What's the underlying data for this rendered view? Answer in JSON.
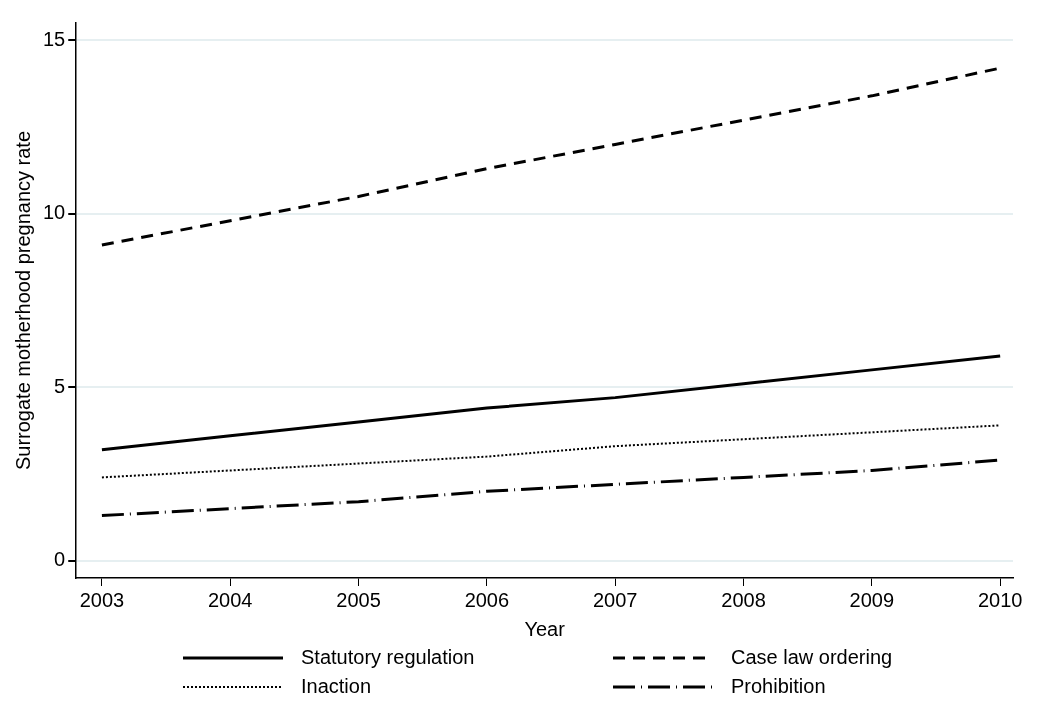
{
  "chart_data": {
    "type": "line",
    "xlabel": "Year",
    "ylabel": "Surrogate motherhood pregnancy rate",
    "x": [
      2003,
      2004,
      2005,
      2006,
      2007,
      2008,
      2009,
      2010
    ],
    "xlim": [
      2002.8,
      2010.1
    ],
    "xticks": [
      2003,
      2004,
      2005,
      2006,
      2007,
      2008,
      2009,
      2010
    ],
    "ylim": [
      -0.5,
      15.5
    ],
    "yticks": [
      0,
      5,
      10,
      15
    ],
    "grid": "y",
    "legend": "bottom",
    "marker": "none",
    "series": [
      {
        "name": "Statutory regulation",
        "color": "#000000",
        "line_style": "solid",
        "values": [
          3.2,
          3.6,
          4.0,
          4.4,
          4.7,
          5.1,
          5.5,
          5.9
        ]
      },
      {
        "name": "Case law ordering",
        "color": "#000000",
        "line_style": "dashed",
        "values": [
          9.1,
          9.8,
          10.5,
          11.3,
          12.0,
          12.7,
          13.4,
          14.2
        ]
      },
      {
        "name": "Inaction",
        "color": "#000000",
        "line_style": "dotted",
        "values": [
          2.4,
          2.6,
          2.8,
          3.0,
          3.3,
          3.5,
          3.7,
          3.9
        ]
      },
      {
        "name": "Prohibition",
        "color": "#000000",
        "line_style": "dashdot",
        "values": [
          1.3,
          1.5,
          1.7,
          2.0,
          2.2,
          2.4,
          2.6,
          2.9
        ]
      }
    ]
  }
}
